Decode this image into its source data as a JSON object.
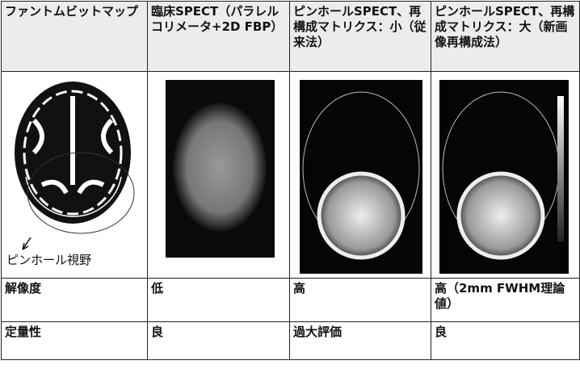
{
  "table": {
    "header": [
      "ファントムビットマップ",
      "臨床SPECT（パラレルコリメータ+2D FBP）",
      "ピンホールSPECT、再構成マトリクス：小（従来法）",
      "ピンホールSPECT、再構成マトリクス：大（新画像再構成法）"
    ],
    "image_caption": "ピンホール視野",
    "rows": [
      [
        "解像度",
        "低",
        "高",
        "高（2mm FWHM理論値）"
      ],
      [
        "定量性",
        "良",
        "過大評価",
        "良"
      ]
    ]
  }
}
